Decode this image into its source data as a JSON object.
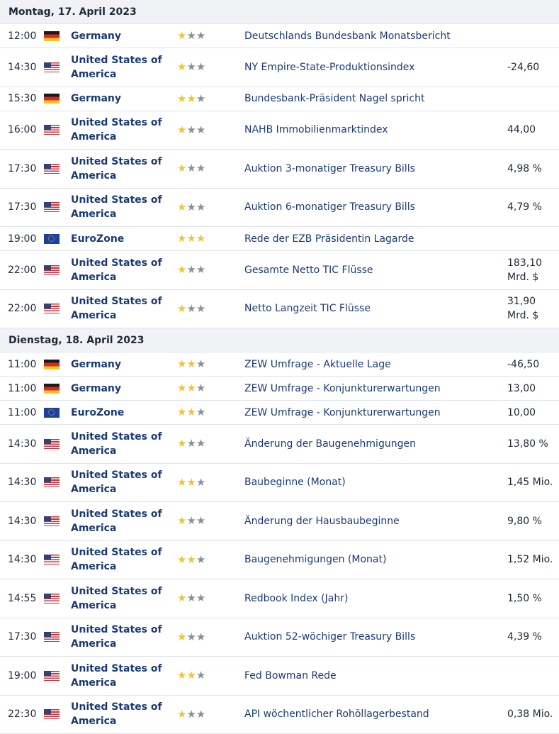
{
  "days": [
    {
      "title": "Montag, 17. April 2023",
      "events": [
        {
          "time": "12:00",
          "flag": "de",
          "country": "Germany",
          "importance": 1,
          "event": "Deutschlands Bundesbank Monatsbericht",
          "value": ""
        },
        {
          "time": "14:30",
          "flag": "us",
          "country": "United States of America",
          "importance": 1,
          "event": "NY Empire-State-Produktionsindex",
          "value": "-24,60"
        },
        {
          "time": "15:30",
          "flag": "de",
          "country": "Germany",
          "importance": 2,
          "event": "Bundesbank-Präsident Nagel spricht",
          "value": ""
        },
        {
          "time": "16:00",
          "flag": "us",
          "country": "United States of America",
          "importance": 1,
          "event": "NAHB Immobilienmarktindex",
          "value": "44,00"
        },
        {
          "time": "17:30",
          "flag": "us",
          "country": "United States of America",
          "importance": 1,
          "event": "Auktion 3-monatiger Treasury Bills",
          "value": "4,98 %"
        },
        {
          "time": "17:30",
          "flag": "us",
          "country": "United States of America",
          "importance": 1,
          "event": "Auktion 6-monatiger Treasury Bills",
          "value": "4,79 %"
        },
        {
          "time": "19:00",
          "flag": "eu",
          "country": "EuroZone",
          "importance": 3,
          "event": "Rede der EZB Präsidentin Lagarde",
          "value": ""
        },
        {
          "time": "22:00",
          "flag": "us",
          "country": "United States of America",
          "importance": 1,
          "event": "Gesamte Netto TIC Flüsse",
          "value": "183,10 Mrd. $"
        },
        {
          "time": "22:00",
          "flag": "us",
          "country": "United States of America",
          "importance": 1,
          "event": "Netto Langzeit TIC Flüsse",
          "value": "31,90 Mrd. $"
        }
      ]
    },
    {
      "title": "Dienstag, 18. April 2023",
      "events": [
        {
          "time": "11:00",
          "flag": "de",
          "country": "Germany",
          "importance": 2,
          "event": "ZEW Umfrage - Aktuelle Lage",
          "value": "-46,50"
        },
        {
          "time": "11:00",
          "flag": "de",
          "country": "Germany",
          "importance": 2,
          "event": "ZEW Umfrage - Konjunkturerwartungen",
          "value": "13,00"
        },
        {
          "time": "11:00",
          "flag": "eu",
          "country": "EuroZone",
          "importance": 2,
          "event": "ZEW Umfrage - Konjunkturerwartungen",
          "value": "10,00"
        },
        {
          "time": "14:30",
          "flag": "us",
          "country": "United States of America",
          "importance": 1,
          "event": "Änderung der Baugenehmigungen",
          "value": "13,80 %"
        },
        {
          "time": "14:30",
          "flag": "us",
          "country": "United States of America",
          "importance": 2,
          "event": "Baubeginne (Monat)",
          "value": "1,45 Mio."
        },
        {
          "time": "14:30",
          "flag": "us",
          "country": "United States of America",
          "importance": 1,
          "event": "Änderung der Hausbaubeginne",
          "value": "9,80 %"
        },
        {
          "time": "14:30",
          "flag": "us",
          "country": "United States of America",
          "importance": 2,
          "event": "Baugenehmigungen (Monat)",
          "value": "1,52 Mio."
        },
        {
          "time": "14:55",
          "flag": "us",
          "country": "United States of America",
          "importance": 1,
          "event": "Redbook Index (Jahr)",
          "value": "1,50 %"
        },
        {
          "time": "17:30",
          "flag": "us",
          "country": "United States of America",
          "importance": 1,
          "event": "Auktion 52-wöchiger Treasury Bills",
          "value": "4,39 %"
        },
        {
          "time": "19:00",
          "flag": "us",
          "country": "United States of America",
          "importance": 2,
          "event": "Fed Bowman Rede",
          "value": ""
        },
        {
          "time": "22:30",
          "flag": "us",
          "country": "United States of America",
          "importance": 1,
          "event": "API wöchentlicher Rohöllagerbestand",
          "value": "0,38 Mio."
        }
      ]
    }
  ],
  "colors": {
    "star_on": "#f2c230",
    "star_off": "#8a8f97",
    "link": "#1b3a77",
    "header_bg": "#f0f2f5"
  },
  "icons": {
    "star": "star-icon",
    "flag_de": "germany-flag-icon",
    "flag_us": "usa-flag-icon",
    "flag_eu": "eu-flag-icon"
  }
}
